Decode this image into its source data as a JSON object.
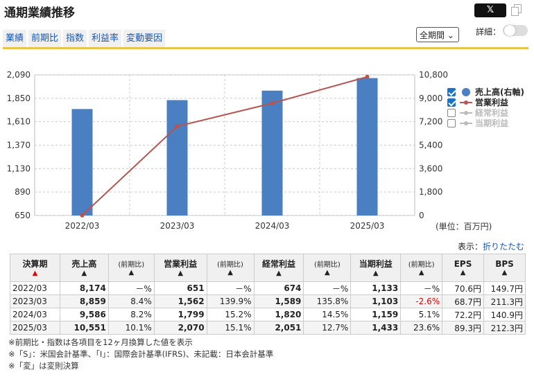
{
  "header": {
    "title": "通期業績推移",
    "x_label": "𝕏",
    "period_select": "全期間",
    "detail_label": "詳細："
  },
  "tabs": [
    {
      "label": "業績",
      "active": true
    },
    {
      "label": "前期比",
      "active": false
    },
    {
      "label": "指数",
      "active": false
    },
    {
      "label": "利益率",
      "active": false
    },
    {
      "label": "変動要因",
      "active": false
    }
  ],
  "chart_data": {
    "type": "bar",
    "categories": [
      "2022/03",
      "2023/03",
      "2024/03",
      "2025/03"
    ],
    "series": [
      {
        "name": "売上高(右軸)",
        "type": "bar",
        "axis": "right",
        "color": "#4a7fc1",
        "values": [
          8174,
          8859,
          9586,
          10551
        ]
      },
      {
        "name": "営業利益",
        "type": "line",
        "axis": "left",
        "color": "#b85450",
        "values": [
          651,
          1562,
          1799,
          2070
        ]
      }
    ],
    "y_left": {
      "min": 650,
      "max": 2090,
      "ticks": [
        "2,090",
        "1,850",
        "1,610",
        "1,370",
        "1,130",
        "890",
        "650"
      ]
    },
    "y_right": {
      "min": 0,
      "max": 10800,
      "ticks": [
        "10,800",
        "9,000",
        "7,200",
        "5,400",
        "3,600",
        "1,800",
        "0"
      ]
    },
    "grid": true,
    "legend_position": "right"
  },
  "legend": [
    {
      "label": "売上高(右軸)",
      "checked": true,
      "marker": "circle",
      "color": "#4a7fc1"
    },
    {
      "label": "営業利益",
      "checked": true,
      "marker": "line",
      "color": "#b85450"
    },
    {
      "label": "経常利益",
      "checked": false,
      "marker": "line",
      "color": "#bbbbbb"
    },
    {
      "label": "当期利益",
      "checked": false,
      "marker": "line",
      "color": "#bbbbbb"
    }
  ],
  "unit": "(単位：百万円)",
  "display": {
    "label": "表示：",
    "link": "折りたたむ"
  },
  "table": {
    "headers": {
      "period": "決算期",
      "sales": "売上高",
      "ratio": "(前期比)",
      "op": "営業利益",
      "ord": "経常利益",
      "net": "当期利益",
      "eps": "EPS",
      "bps": "BPS",
      "arrow": "▲"
    },
    "rows": [
      {
        "period": "2022/03",
        "sales": "8,174",
        "sales_r": "－%",
        "op": "651",
        "op_r": "－%",
        "ord": "674",
        "ord_r": "－%",
        "net": "1,133",
        "net_r": "－%",
        "eps": "70.6円",
        "bps": "149.7円"
      },
      {
        "period": "2023/03",
        "sales": "8,859",
        "sales_r": "8.4%",
        "op": "1,562",
        "op_r": "139.9%",
        "ord": "1,589",
        "ord_r": "135.8%",
        "net": "1,103",
        "net_r": "-2.6%",
        "eps": "68.7円",
        "bps": "211.3円"
      },
      {
        "period": "2024/03",
        "sales": "9,586",
        "sales_r": "8.2%",
        "op": "1,799",
        "op_r": "15.2%",
        "ord": "1,820",
        "ord_r": "14.5%",
        "net": "1,159",
        "net_r": "5.1%",
        "eps": "72.2円",
        "bps": "140.9円"
      },
      {
        "period": "2025/03",
        "sales": "10,551",
        "sales_r": "10.1%",
        "op": "2,070",
        "op_r": "15.1%",
        "ord": "2,051",
        "ord_r": "12.7%",
        "net": "1,433",
        "net_r": "23.6%",
        "eps": "89.3円",
        "bps": "212.3円"
      }
    ]
  },
  "notes": [
    "※前期比・指数は各項目を12ヶ月換算した値を表示",
    "※「S」：米国会計基準、「I」：国際会計基準(IFRS)、未記載：日本会計基準",
    "※「変」は変則決算"
  ]
}
